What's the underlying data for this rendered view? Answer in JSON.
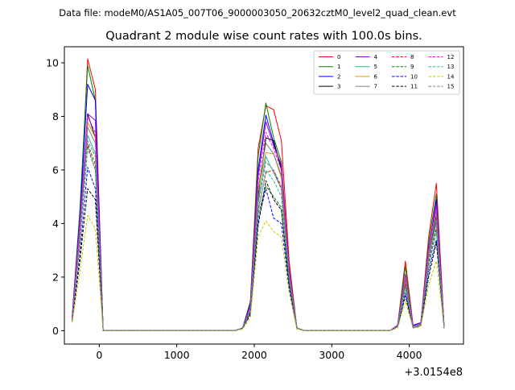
{
  "chart_data": {
    "type": "line",
    "suptitle": "Data file: modeM0/AS1A05_007T06_9000003050_20632cztM0_level2_quad_clean.evt",
    "title": "Quadrant 2 module wise count rates with 100.0s bins.",
    "xlabel": "",
    "ylabel": "",
    "x_offset_label": "+3.0154e8",
    "xlim": [
      -450,
      4700
    ],
    "ylim": [
      -0.5,
      10.6
    ],
    "xticks": [
      0,
      1000,
      2000,
      3000,
      4000
    ],
    "xtick_labels": [
      "0",
      "1000",
      "2000",
      "3000",
      "4000"
    ],
    "yticks": [
      0,
      2,
      4,
      6,
      8,
      10
    ],
    "ytick_labels": [
      "0",
      "2",
      "4",
      "6",
      "8",
      "10"
    ],
    "legend_position": "top-right",
    "x": [
      -350,
      -250,
      -150,
      -50,
      50,
      150,
      250,
      350,
      450,
      550,
      650,
      750,
      850,
      950,
      1050,
      1150,
      1250,
      1350,
      1450,
      1550,
      1650,
      1750,
      1850,
      1950,
      2050,
      2150,
      2250,
      2350,
      2450,
      2550,
      2650,
      2750,
      2850,
      2950,
      3050,
      3150,
      3250,
      3350,
      3450,
      3550,
      3650,
      3750,
      3850,
      3950,
      4050,
      4150,
      4250,
      4350,
      4450
    ],
    "series": [
      {
        "name": "0",
        "color": "#ff0000",
        "dash": "solid",
        "values": [
          0.5,
          4.0,
          10.15,
          9.0,
          0.0,
          0.0,
          0.0,
          0.0,
          0.0,
          0.0,
          0.0,
          0.0,
          0.0,
          0.0,
          0.0,
          0.0,
          0.0,
          0.0,
          0.0,
          0.0,
          0.0,
          0.0,
          0.1,
          1.0,
          6.8,
          8.4,
          8.25,
          7.1,
          2.6,
          0.1,
          0.0,
          0.0,
          0.0,
          0.0,
          0.0,
          0.0,
          0.0,
          0.0,
          0.0,
          0.0,
          0.0,
          0.0,
          0.2,
          2.6,
          0.2,
          0.3,
          3.5,
          5.5,
          0.15
        ]
      },
      {
        "name": "1",
        "color": "#008000",
        "dash": "solid",
        "values": [
          0.5,
          4.5,
          9.9,
          8.6,
          0.0,
          0.0,
          0.0,
          0.0,
          0.0,
          0.0,
          0.0,
          0.0,
          0.0,
          0.0,
          0.0,
          0.0,
          0.0,
          0.0,
          0.0,
          0.0,
          0.0,
          0.0,
          0.1,
          1.1,
          6.5,
          8.5,
          7.2,
          6.3,
          2.4,
          0.1,
          0.0,
          0.0,
          0.0,
          0.0,
          0.0,
          0.0,
          0.0,
          0.0,
          0.0,
          0.0,
          0.0,
          0.0,
          0.2,
          2.4,
          0.15,
          0.3,
          3.3,
          5.1,
          0.15
        ]
      },
      {
        "name": "2",
        "color": "#0000ff",
        "dash": "solid",
        "values": [
          0.5,
          4.2,
          9.2,
          8.6,
          0.0,
          0.0,
          0.0,
          0.0,
          0.0,
          0.0,
          0.0,
          0.0,
          0.0,
          0.0,
          0.0,
          0.0,
          0.0,
          0.0,
          0.0,
          0.0,
          0.0,
          0.0,
          0.1,
          1.0,
          6.0,
          8.05,
          7.0,
          6.1,
          2.3,
          0.1,
          0.0,
          0.0,
          0.0,
          0.0,
          0.0,
          0.0,
          0.0,
          0.0,
          0.0,
          0.0,
          0.0,
          0.0,
          0.2,
          2.0,
          0.2,
          0.3,
          3.0,
          4.9,
          0.15
        ]
      },
      {
        "name": "3",
        "color": "#000000",
        "dash": "solid",
        "values": [
          0.4,
          3.5,
          8.1,
          7.2,
          0.0,
          0.0,
          0.0,
          0.0,
          0.0,
          0.0,
          0.0,
          0.0,
          0.0,
          0.0,
          0.0,
          0.0,
          0.0,
          0.0,
          0.0,
          0.0,
          0.0,
          0.0,
          0.1,
          0.9,
          5.0,
          7.2,
          7.1,
          6.0,
          2.2,
          0.1,
          0.0,
          0.0,
          0.0,
          0.0,
          0.0,
          0.0,
          0.0,
          0.0,
          0.0,
          0.0,
          0.0,
          0.0,
          0.2,
          1.8,
          0.15,
          0.25,
          2.8,
          4.3,
          0.1
        ]
      },
      {
        "name": "4",
        "color": "#9400d3",
        "dash": "solid",
        "values": [
          0.45,
          4.0,
          8.1,
          7.85,
          0.0,
          0.0,
          0.0,
          0.0,
          0.0,
          0.0,
          0.0,
          0.0,
          0.0,
          0.0,
          0.0,
          0.0,
          0.0,
          0.0,
          0.0,
          0.0,
          0.0,
          0.0,
          0.1,
          0.95,
          5.8,
          7.8,
          6.9,
          6.2,
          2.3,
          0.1,
          0.0,
          0.0,
          0.0,
          0.0,
          0.0,
          0.0,
          0.0,
          0.0,
          0.0,
          0.0,
          0.0,
          0.0,
          0.2,
          2.1,
          0.15,
          0.3,
          3.1,
          4.7,
          0.15
        ]
      },
      {
        "name": "5",
        "color": "#20b2aa",
        "dash": "solid",
        "values": [
          0.4,
          3.6,
          7.3,
          6.6,
          0.0,
          0.0,
          0.0,
          0.0,
          0.0,
          0.0,
          0.0,
          0.0,
          0.0,
          0.0,
          0.0,
          0.0,
          0.0,
          0.0,
          0.0,
          0.0,
          0.0,
          0.0,
          0.1,
          0.8,
          4.8,
          6.5,
          5.9,
          5.3,
          2.0,
          0.1,
          0.0,
          0.0,
          0.0,
          0.0,
          0.0,
          0.0,
          0.0,
          0.0,
          0.0,
          0.0,
          0.0,
          0.0,
          0.15,
          1.9,
          0.15,
          0.25,
          2.7,
          4.1,
          0.1
        ]
      },
      {
        "name": "6",
        "color": "#c8a000",
        "dash": "solid",
        "values": [
          0.4,
          3.6,
          7.8,
          7.2,
          0.0,
          0.0,
          0.0,
          0.0,
          0.0,
          0.0,
          0.0,
          0.0,
          0.0,
          0.0,
          0.0,
          0.0,
          0.0,
          0.0,
          0.0,
          0.0,
          0.0,
          0.0,
          0.1,
          0.85,
          5.2,
          6.65,
          6.6,
          5.7,
          2.1,
          0.1,
          0.0,
          0.0,
          0.0,
          0.0,
          0.0,
          0.0,
          0.0,
          0.0,
          0.0,
          0.0,
          0.0,
          0.0,
          0.15,
          2.0,
          0.15,
          0.25,
          2.9,
          4.4,
          0.1
        ]
      },
      {
        "name": "7",
        "color": "#808080",
        "dash": "solid",
        "values": [
          0.4,
          3.7,
          7.6,
          7.0,
          0.0,
          0.0,
          0.0,
          0.0,
          0.0,
          0.0,
          0.0,
          0.0,
          0.0,
          0.0,
          0.0,
          0.0,
          0.0,
          0.0,
          0.0,
          0.0,
          0.0,
          0.0,
          0.1,
          0.85,
          5.3,
          7.0,
          6.6,
          5.8,
          2.1,
          0.1,
          0.0,
          0.0,
          0.0,
          0.0,
          0.0,
          0.0,
          0.0,
          0.0,
          0.0,
          0.0,
          0.0,
          0.0,
          0.15,
          1.9,
          0.15,
          0.25,
          2.8,
          4.5,
          0.1
        ]
      },
      {
        "name": "8",
        "color": "#ff0000",
        "dash": "dashed",
        "values": [
          0.4,
          3.2,
          6.9,
          6.0,
          0.0,
          0.0,
          0.0,
          0.0,
          0.0,
          0.0,
          0.0,
          0.0,
          0.0,
          0.0,
          0.0,
          0.0,
          0.0,
          0.0,
          0.0,
          0.0,
          0.0,
          0.0,
          0.1,
          0.7,
          4.5,
          5.9,
          6.0,
          5.3,
          1.9,
          0.1,
          0.0,
          0.0,
          0.0,
          0.0,
          0.0,
          0.0,
          0.0,
          0.0,
          0.0,
          0.0,
          0.0,
          0.0,
          0.15,
          1.7,
          0.1,
          0.2,
          2.5,
          4.0,
          0.1
        ]
      },
      {
        "name": "9",
        "color": "#008000",
        "dash": "dashed",
        "values": [
          0.4,
          3.3,
          7.0,
          6.2,
          0.0,
          0.0,
          0.0,
          0.0,
          0.0,
          0.0,
          0.0,
          0.0,
          0.0,
          0.0,
          0.0,
          0.0,
          0.0,
          0.0,
          0.0,
          0.0,
          0.0,
          0.0,
          0.1,
          0.75,
          4.3,
          5.4,
          5.0,
          4.6,
          1.8,
          0.1,
          0.0,
          0.0,
          0.0,
          0.0,
          0.0,
          0.0,
          0.0,
          0.0,
          0.0,
          0.0,
          0.0,
          0.0,
          0.15,
          1.6,
          0.1,
          0.2,
          2.4,
          3.8,
          0.1
        ]
      },
      {
        "name": "10",
        "color": "#0000ff",
        "dash": "dashed",
        "values": [
          0.35,
          2.8,
          6.1,
          5.3,
          0.0,
          0.0,
          0.0,
          0.0,
          0.0,
          0.0,
          0.0,
          0.0,
          0.0,
          0.0,
          0.0,
          0.0,
          0.0,
          0.0,
          0.0,
          0.0,
          0.0,
          0.0,
          0.1,
          0.65,
          4.1,
          5.3,
          4.2,
          4.0,
          1.6,
          0.1,
          0.0,
          0.0,
          0.0,
          0.0,
          0.0,
          0.0,
          0.0,
          0.0,
          0.0,
          0.0,
          0.0,
          0.0,
          0.15,
          1.4,
          0.1,
          0.2,
          2.2,
          3.4,
          0.1
        ]
      },
      {
        "name": "11",
        "color": "#000000",
        "dash": "dashed",
        "values": [
          0.35,
          2.6,
          5.3,
          4.9,
          0.0,
          0.0,
          0.0,
          0.0,
          0.0,
          0.0,
          0.0,
          0.0,
          0.0,
          0.0,
          0.0,
          0.0,
          0.0,
          0.0,
          0.0,
          0.0,
          0.0,
          0.0,
          0.1,
          0.6,
          3.9,
          5.6,
          4.9,
          4.5,
          1.7,
          0.1,
          0.0,
          0.0,
          0.0,
          0.0,
          0.0,
          0.0,
          0.0,
          0.0,
          0.0,
          0.0,
          0.0,
          0.0,
          0.15,
          1.3,
          0.1,
          0.2,
          2.0,
          3.3,
          0.1
        ]
      },
      {
        "name": "12",
        "color": "#ff00ff",
        "dash": "dashed",
        "values": [
          0.45,
          4.0,
          8.0,
          7.4,
          0.0,
          0.0,
          0.0,
          0.0,
          0.0,
          0.0,
          0.0,
          0.0,
          0.0,
          0.0,
          0.0,
          0.0,
          0.0,
          0.0,
          0.0,
          0.0,
          0.0,
          0.0,
          0.1,
          0.9,
          5.6,
          7.4,
          6.8,
          6.0,
          2.2,
          0.1,
          0.0,
          0.0,
          0.0,
          0.0,
          0.0,
          0.0,
          0.0,
          0.0,
          0.0,
          0.0,
          0.0,
          0.0,
          0.2,
          2.0,
          0.15,
          0.3,
          3.0,
          4.6,
          0.1
        ]
      },
      {
        "name": "13",
        "color": "#20b2aa",
        "dash": "dashed",
        "values": [
          0.4,
          3.3,
          6.8,
          6.0,
          0.0,
          0.0,
          0.0,
          0.0,
          0.0,
          0.0,
          0.0,
          0.0,
          0.0,
          0.0,
          0.0,
          0.0,
          0.0,
          0.0,
          0.0,
          0.0,
          0.0,
          0.0,
          0.1,
          0.7,
          4.4,
          6.0,
          5.6,
          5.0,
          1.9,
          0.1,
          0.0,
          0.0,
          0.0,
          0.0,
          0.0,
          0.0,
          0.0,
          0.0,
          0.0,
          0.0,
          0.0,
          0.0,
          0.15,
          1.6,
          0.1,
          0.2,
          2.4,
          3.7,
          0.1
        ]
      },
      {
        "name": "14",
        "color": "#c8c800",
        "dash": "dashed",
        "values": [
          0.3,
          2.2,
          4.3,
          3.8,
          0.0,
          0.0,
          0.0,
          0.0,
          0.0,
          0.0,
          0.0,
          0.0,
          0.0,
          0.0,
          0.0,
          0.0,
          0.0,
          0.0,
          0.0,
          0.0,
          0.0,
          0.0,
          0.05,
          0.5,
          3.5,
          4.1,
          3.7,
          3.5,
          1.4,
          0.05,
          0.0,
          0.0,
          0.0,
          0.0,
          0.0,
          0.0,
          0.0,
          0.0,
          0.0,
          0.0,
          0.0,
          0.0,
          0.1,
          1.1,
          0.1,
          0.15,
          1.7,
          2.6,
          0.1
        ]
      },
      {
        "name": "15",
        "color": "#808080",
        "dash": "dashed",
        "values": [
          0.4,
          3.4,
          7.1,
          6.5,
          0.0,
          0.0,
          0.0,
          0.0,
          0.0,
          0.0,
          0.0,
          0.0,
          0.0,
          0.0,
          0.0,
          0.0,
          0.0,
          0.0,
          0.0,
          0.0,
          0.0,
          0.0,
          0.1,
          0.75,
          4.7,
          6.3,
          6.0,
          5.4,
          2.0,
          0.1,
          0.0,
          0.0,
          0.0,
          0.0,
          0.0,
          0.0,
          0.0,
          0.0,
          0.0,
          0.0,
          0.0,
          0.0,
          0.15,
          1.8,
          0.1,
          0.25,
          2.6,
          4.0,
          0.1
        ]
      }
    ]
  }
}
